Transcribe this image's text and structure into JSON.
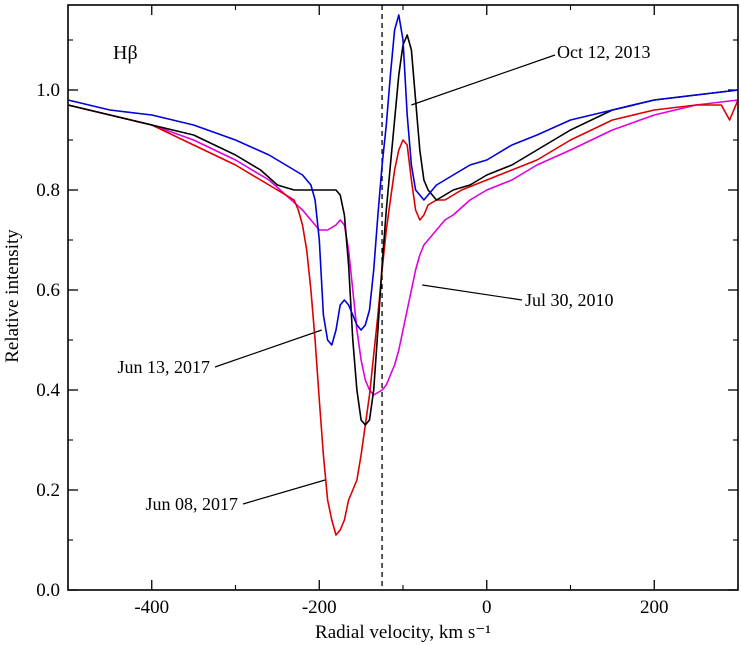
{
  "chart_data": {
    "type": "line",
    "panel_label": "Hβ",
    "xlabel": "Radial velocity, km s⁻¹",
    "ylabel": "Relative intensity",
    "xlim": [
      -500,
      300
    ],
    "ylim": [
      0.0,
      1.17
    ],
    "xticks": [
      -400,
      -200,
      0,
      200
    ],
    "xtick_labels": [
      "-400",
      "-200",
      "0",
      "200"
    ],
    "yticks": [
      0.0,
      0.2,
      0.4,
      0.6,
      0.8,
      1.0
    ],
    "ytick_labels": [
      "0.0",
      "0.2",
      "0.4",
      "0.6",
      "0.8",
      "1.0"
    ],
    "vertical_reference_line": {
      "x": -125,
      "style": "dashed"
    },
    "series": [
      {
        "name": "Oct 12, 2013",
        "color": "#000000",
        "x": [
          -500,
          -450,
          -400,
          -350,
          -300,
          -270,
          -250,
          -230,
          -210,
          -200,
          -190,
          -185,
          -180,
          -175,
          -170,
          -165,
          -160,
          -155,
          -150,
          -145,
          -140,
          -135,
          -130,
          -125,
          -120,
          -115,
          -110,
          -105,
          -100,
          -95,
          -90,
          -85,
          -80,
          -75,
          -70,
          -65,
          -60,
          -50,
          -40,
          -20,
          0,
          30,
          60,
          100,
          150,
          200,
          250,
          300
        ],
        "y": [
          0.97,
          0.95,
          0.93,
          0.91,
          0.87,
          0.84,
          0.81,
          0.8,
          0.8,
          0.8,
          0.8,
          0.8,
          0.8,
          0.79,
          0.75,
          0.65,
          0.5,
          0.4,
          0.34,
          0.33,
          0.34,
          0.4,
          0.52,
          0.65,
          0.76,
          0.85,
          0.94,
          1.03,
          1.09,
          1.11,
          1.08,
          0.98,
          0.88,
          0.82,
          0.8,
          0.79,
          0.78,
          0.79,
          0.8,
          0.81,
          0.83,
          0.85,
          0.88,
          0.92,
          0.96,
          0.98,
          0.99,
          1.0
        ]
      },
      {
        "name": "Jun 13, 2017",
        "color": "#0000dd",
        "x": [
          -500,
          -450,
          -400,
          -350,
          -300,
          -260,
          -240,
          -220,
          -210,
          -205,
          -200,
          -195,
          -190,
          -185,
          -180,
          -175,
          -170,
          -165,
          -160,
          -155,
          -150,
          -145,
          -140,
          -135,
          -130,
          -125,
          -120,
          -115,
          -110,
          -105,
          -100,
          -95,
          -90,
          -85,
          -80,
          -75,
          -70,
          -65,
          -60,
          -50,
          -40,
          -20,
          0,
          30,
          60,
          100,
          150,
          200,
          250,
          300
        ],
        "y": [
          0.98,
          0.96,
          0.95,
          0.93,
          0.9,
          0.87,
          0.85,
          0.83,
          0.81,
          0.78,
          0.7,
          0.55,
          0.5,
          0.49,
          0.52,
          0.57,
          0.58,
          0.57,
          0.55,
          0.53,
          0.52,
          0.53,
          0.56,
          0.64,
          0.75,
          0.85,
          0.93,
          1.03,
          1.12,
          1.15,
          1.1,
          0.95,
          0.85,
          0.8,
          0.79,
          0.78,
          0.79,
          0.8,
          0.81,
          0.82,
          0.83,
          0.85,
          0.86,
          0.89,
          0.91,
          0.94,
          0.96,
          0.98,
          0.99,
          1.0
        ]
      },
      {
        "name": "Jun 08, 2017",
        "color": "#dd0000",
        "x": [
          -500,
          -450,
          -400,
          -350,
          -300,
          -270,
          -250,
          -240,
          -230,
          -225,
          -220,
          -215,
          -210,
          -205,
          -200,
          -195,
          -190,
          -185,
          -180,
          -175,
          -170,
          -165,
          -160,
          -155,
          -150,
          -145,
          -140,
          -135,
          -130,
          -125,
          -120,
          -115,
          -110,
          -105,
          -100,
          -95,
          -90,
          -85,
          -80,
          -75,
          -70,
          -60,
          -50,
          -30,
          0,
          30,
          60,
          100,
          150,
          200,
          250,
          280,
          290,
          300
        ],
        "y": [
          0.97,
          0.95,
          0.93,
          0.89,
          0.85,
          0.82,
          0.8,
          0.79,
          0.78,
          0.76,
          0.73,
          0.68,
          0.6,
          0.5,
          0.38,
          0.27,
          0.18,
          0.14,
          0.11,
          0.12,
          0.14,
          0.18,
          0.2,
          0.22,
          0.27,
          0.33,
          0.39,
          0.47,
          0.55,
          0.64,
          0.72,
          0.78,
          0.84,
          0.88,
          0.9,
          0.89,
          0.82,
          0.76,
          0.74,
          0.75,
          0.77,
          0.78,
          0.78,
          0.8,
          0.82,
          0.84,
          0.86,
          0.9,
          0.94,
          0.96,
          0.97,
          0.97,
          0.94,
          0.98
        ]
      },
      {
        "name": "Jul 30, 2010",
        "color": "#e000e0",
        "x": [
          -500,
          -450,
          -400,
          -350,
          -300,
          -260,
          -240,
          -220,
          -210,
          -200,
          -190,
          -180,
          -175,
          -170,
          -165,
          -160,
          -155,
          -150,
          -145,
          -140,
          -135,
          -130,
          -125,
          -120,
          -115,
          -110,
          -105,
          -100,
          -95,
          -90,
          -85,
          -80,
          -75,
          -70,
          -60,
          -50,
          -40,
          -20,
          0,
          30,
          60,
          100,
          150,
          200,
          250,
          300
        ],
        "y": [
          0.97,
          0.95,
          0.93,
          0.9,
          0.86,
          0.82,
          0.79,
          0.76,
          0.74,
          0.72,
          0.72,
          0.73,
          0.74,
          0.73,
          0.68,
          0.6,
          0.52,
          0.46,
          0.42,
          0.4,
          0.39,
          0.395,
          0.4,
          0.41,
          0.43,
          0.45,
          0.48,
          0.52,
          0.56,
          0.6,
          0.64,
          0.67,
          0.69,
          0.7,
          0.72,
          0.74,
          0.75,
          0.78,
          0.8,
          0.82,
          0.85,
          0.88,
          0.92,
          0.95,
          0.97,
          0.98
        ]
      }
    ],
    "annotations": [
      {
        "series": "Oct 12, 2013",
        "text": "Oct 12, 2013",
        "point": [
          -90,
          0.97
        ],
        "label_anchor": "start"
      },
      {
        "series": "Jul 30, 2010",
        "text": "Jul 30, 2010",
        "point": [
          -77,
          0.61
        ],
        "label_anchor": "start"
      },
      {
        "series": "Jun 13, 2017",
        "text": "Jun 13, 2017",
        "point": [
          -197,
          0.52
        ],
        "label_anchor": "end"
      },
      {
        "series": "Jun 08, 2017",
        "text": "Jun 08, 2017",
        "point": [
          -193,
          0.22
        ],
        "label_anchor": "end"
      }
    ]
  }
}
